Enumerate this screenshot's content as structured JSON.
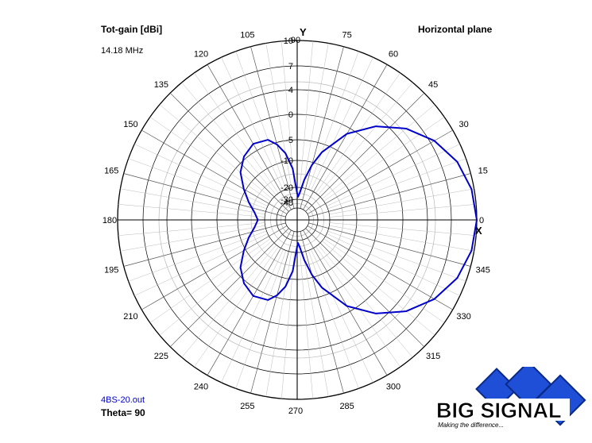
{
  "header": {
    "title": "Tot-gain [dBi]",
    "frequency": "14.18 MHz",
    "plane": "Horizontal plane"
  },
  "footer": {
    "file": "4BS-20.out",
    "theta": "Theta= 90"
  },
  "logo": {
    "name": "BIG SIGNAL",
    "tagline": "Making the difference..."
  },
  "axes": {
    "y_label": "Y",
    "x_label": "X"
  },
  "colors": {
    "pattern": "#0000cc",
    "grid": "#000000",
    "logo_blue": "#1f4fd6"
  },
  "chart_data": {
    "type": "polar",
    "angle_unit": "degrees",
    "angle_ticks": [
      0,
      15,
      30,
      45,
      60,
      75,
      90,
      105,
      120,
      135,
      150,
      165,
      180,
      195,
      210,
      225,
      240,
      255,
      270,
      285,
      300,
      315,
      330,
      345
    ],
    "radial_ticks": [
      10,
      7,
      4,
      0,
      -5,
      -10,
      -20,
      -30,
      -40
    ],
    "radial_range": [
      -40,
      10
    ],
    "series": [
      {
        "angles": [
          0,
          10,
          20,
          30,
          40,
          50,
          60,
          70,
          75,
          80,
          85,
          88,
          90,
          92,
          95,
          100,
          105,
          110,
          120,
          130,
          140,
          150,
          160,
          170,
          180,
          190,
          200,
          210,
          220,
          230,
          240,
          250,
          255,
          260,
          265,
          268,
          270,
          272,
          275,
          280,
          285,
          290,
          300,
          310,
          320,
          330,
          340,
          350,
          360
        ],
        "gain": [
          10,
          9.7,
          8.9,
          7.5,
          5.5,
          2.7,
          -1.2,
          -7,
          -11,
          -17,
          -25,
          -28,
          -25,
          -20,
          -13,
          -8,
          -5.5,
          -4,
          -3.5,
          -4.5,
          -6.5,
          -9.5,
          -13,
          -16,
          -17.5,
          -16,
          -13,
          -9.5,
          -6.5,
          -4.5,
          -3.5,
          -4,
          -5.5,
          -8,
          -13,
          -20,
          -25,
          -28,
          -25,
          -17,
          -11,
          -7,
          -1.2,
          2.7,
          5.5,
          7.5,
          8.9,
          9.7,
          10
        ]
      }
    ]
  }
}
